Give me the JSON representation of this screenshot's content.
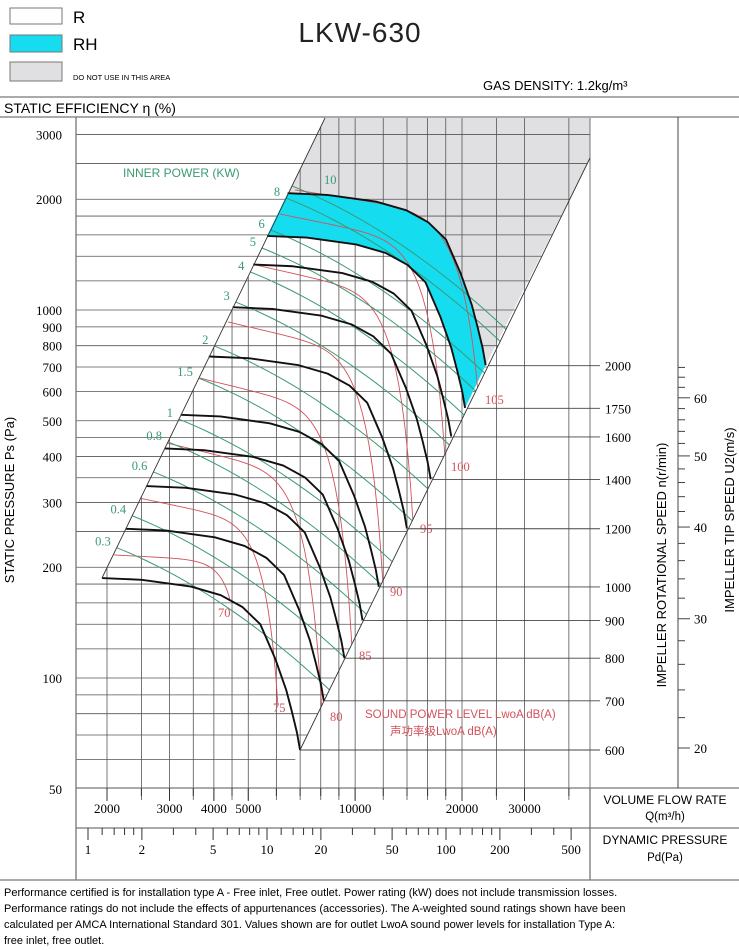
{
  "legend": {
    "items": [
      {
        "label": "R",
        "color": "#ffffff"
      },
      {
        "label": "RH",
        "color": "#16dcf0"
      },
      {
        "label": "DO NOT USE IN THIS AREA",
        "color": "#e0e0e3"
      }
    ]
  },
  "header": {
    "title": "LKW-630",
    "gas_density": "GAS DENSITY: 1.2kg/m³",
    "efficiency_label": "STATIC EFFICIENCY η (%)"
  },
  "footer": {
    "lines": [
      "Performance certified is for installation type A - Free inlet, Free outlet. Power rating (kW) does not include transmission losses.",
      "Performance ratings do not include the effects of appurtenances (accessories). The A-weighted sound ratings shown have been",
      "calculated per AMCA International Standard 301. Values shown are for outlet LwoA sound power levels for installation Type A:",
      "free inlet, free outlet."
    ]
  },
  "chart_data": {
    "type": "line",
    "title": "LKW-630",
    "xlabel": "VOLUME FLOW RATE",
    "xlabel_unit": "Q(m³/h)",
    "ylabel": "STATIC PRESSURE Ps (Pa)",
    "xscale": "log",
    "yscale": "log",
    "xlim": [
      1700,
      46000
    ],
    "ylim": [
      50,
      3500
    ],
    "grid": true,
    "y_ticks": [
      "3000",
      "2000",
      "1000",
      "900",
      "800",
      "700",
      "600",
      "500",
      "400",
      "300",
      "200",
      "100",
      "50"
    ],
    "x_ticks": [
      "2000",
      "3000",
      "4000",
      "5000",
      "10000",
      "20000",
      "30000"
    ],
    "dynamic_pressure": {
      "label": "DYNAMIC PRESSURE",
      "unit": "Pd(Pa)",
      "ticks": [
        "1",
        "2",
        "5",
        "10",
        "20",
        "50",
        "100",
        "200",
        "500"
      ]
    },
    "speed_axis": {
      "label": "IMPELLER ROTATIONAL SPEED n(r/min)",
      "ticks": [
        "2000",
        "1750",
        "1600",
        "1400",
        "1200",
        "1000",
        "900",
        "800",
        "700",
        "600"
      ]
    },
    "tip_speed_axis": {
      "label": "IMPELLER TIP SPEED U2(m/s)",
      "ticks": [
        "60",
        "50",
        "40",
        "30",
        "20"
      ]
    },
    "speed_curve_base_rpm": 600,
    "speed_curve_base": [
      [
        1936,
        186.9
      ],
      [
        2504,
        184.9
      ],
      [
        3450,
        177.2
      ],
      [
        4184,
        167.9
      ],
      [
        4820,
        155.8
      ],
      [
        5408,
        139.9
      ],
      [
        5956,
        112.8
      ],
      [
        6393,
        92.9
      ],
      [
        6642,
        80.7
      ],
      [
        6858,
        71.0
      ],
      [
        6996,
        63.7
      ]
    ],
    "speed_curves_rpm": [
      600,
      700,
      800,
      900,
      1000,
      1200,
      1400,
      1600,
      1750,
      2000
    ],
    "rh_band_rpm": [
      1750,
      2000
    ],
    "power": {
      "label": "INNER POWER (KW)",
      "lines": [
        {
          "kw": "0.3",
          "start_ps": 226
        },
        {
          "kw": "0.4",
          "start_ps": 276
        },
        {
          "kw": "0.6",
          "start_ps": 363
        },
        {
          "kw": "0.8",
          "start_ps": 438
        },
        {
          "kw": "1",
          "start_ps": 505
        },
        {
          "kw": "1.5",
          "start_ps": 653
        },
        {
          "kw": "2",
          "start_ps": 798
        },
        {
          "kw": "3",
          "start_ps": 1051
        },
        {
          "kw": "4",
          "start_ps": 1269
        },
        {
          "kw": "5",
          "start_ps": 1474
        },
        {
          "kw": "6",
          "start_ps": 1650
        },
        {
          "kw": "8",
          "start_ps": 2015
        },
        {
          "kw": "10",
          "start_ps": 2173
        }
      ]
    },
    "sound": {
      "label": "SOUND POWER LEVEL LwoA dB(A)",
      "label_cn": "声功率级LwoA dB(A)",
      "lines": [
        {
          "db": "70",
          "start": [
            2093,
            216
          ],
          "end": [
            4440,
            163
          ]
        },
        {
          "db": "75",
          "start": [
            2477,
            308
          ],
          "end": [
            6063,
            84
          ]
        },
        {
          "db": "80",
          "start": [
            2953,
            435
          ],
          "end": [
            8066,
            81
          ]
        },
        {
          "db": "85",
          "start": [
            3656,
            653
          ],
          "end": [
            9797,
            121
          ]
        },
        {
          "db": "90",
          "start": [
            4383,
            928
          ],
          "end": [
            11980,
            179
          ]
        },
        {
          "db": "95",
          "start": [
            5257,
            1325
          ],
          "end": [
            14555,
            265
          ]
        },
        {
          "db": "100",
          "start": [
            6141,
            1823
          ],
          "end": [
            17910,
            399
          ]
        },
        {
          "db": "105",
          "start": [
            6769,
            2119
          ],
          "end": [
            22180,
            599
          ]
        }
      ]
    },
    "colors": {
      "speed": "#111111",
      "power": "#3a9a73",
      "sound": "#d2525c",
      "rh": "#16dcf0",
      "restricted": "#e0e0e3"
    }
  }
}
